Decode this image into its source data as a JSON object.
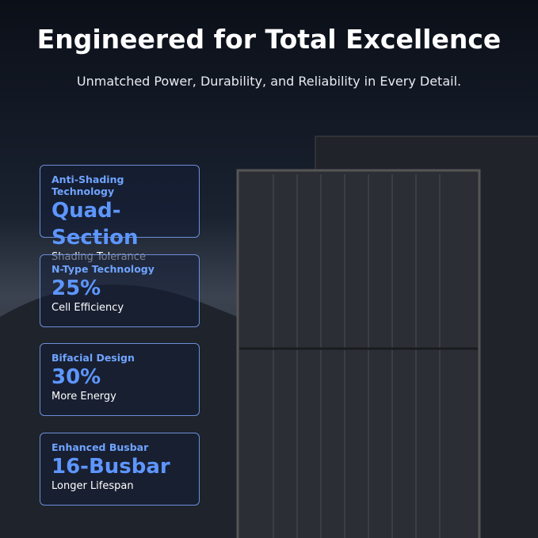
{
  "header": {
    "title": "Engineered for Total Excellence",
    "subtitle": "Unmatched Power, Durability, and Reliability in Every Detail."
  },
  "features": [
    {
      "label": "Anti-Shading Technology",
      "value": "Quad-Section",
      "caption": "Shading Tolerance"
    },
    {
      "label": "N-Type Technology",
      "value": "25%",
      "caption": "Cell Efficiency"
    },
    {
      "label": "Bifacial Design",
      "value": "30%",
      "caption": "More Energy"
    },
    {
      "label": "Enhanced Busbar",
      "value": "16-Busbar",
      "caption": "Longer Lifespan"
    }
  ]
}
